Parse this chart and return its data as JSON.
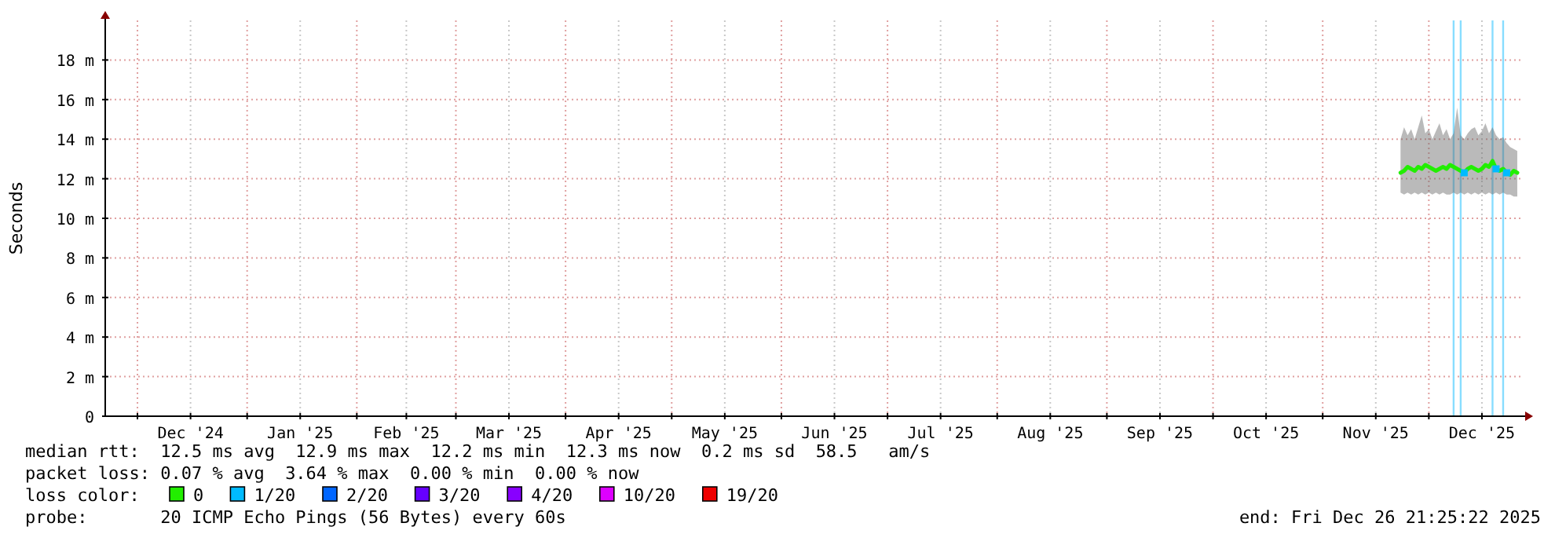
{
  "chart_data": {
    "type": "line",
    "ylabel": "Seconds",
    "legend_title": "loss color:",
    "legend": "bottom",
    "grid": true,
    "xlim": [
      "2024-11-21T21:25",
      "2025-12-26T21:25"
    ],
    "xticks": [
      {
        "value": "2024-12-01",
        "label": null
      },
      {
        "value": "2024-12-16",
        "label": "Dec '24"
      },
      {
        "value": "2025-01-01",
        "label": null
      },
      {
        "value": "2025-01-16",
        "label": "Jan '25"
      },
      {
        "value": "2025-02-01",
        "label": null
      },
      {
        "value": "2025-02-15",
        "label": "Feb '25"
      },
      {
        "value": "2025-03-01",
        "label": null
      },
      {
        "value": "2025-03-16",
        "label": "Mar '25"
      },
      {
        "value": "2025-04-01",
        "label": null
      },
      {
        "value": "2025-04-16",
        "label": "Apr '25"
      },
      {
        "value": "2025-05-01",
        "label": null
      },
      {
        "value": "2025-05-16",
        "label": "May '25"
      },
      {
        "value": "2025-06-01",
        "label": null
      },
      {
        "value": "2025-06-16",
        "label": "Jun '25"
      },
      {
        "value": "2025-07-01",
        "label": null
      },
      {
        "value": "2025-07-16",
        "label": "Jul '25"
      },
      {
        "value": "2025-08-01",
        "label": null
      },
      {
        "value": "2025-08-16",
        "label": "Aug '25"
      },
      {
        "value": "2025-09-01",
        "label": null
      },
      {
        "value": "2025-09-16",
        "label": "Sep '25"
      },
      {
        "value": "2025-10-01",
        "label": null
      },
      {
        "value": "2025-10-16",
        "label": "Oct '25"
      },
      {
        "value": "2025-11-01",
        "label": null
      },
      {
        "value": "2025-11-16",
        "label": "Nov '25"
      },
      {
        "value": "2025-12-01",
        "label": null
      },
      {
        "value": "2025-12-16",
        "label": "Dec '25"
      }
    ],
    "ylim": [
      0,
      20
    ],
    "yticks": [
      0,
      {
        "value": 2,
        "label": "2 m"
      },
      {
        "value": 4,
        "label": "4 m"
      },
      {
        "value": 6,
        "label": "6 m"
      },
      {
        "value": 8,
        "label": "8 m"
      },
      {
        "value": 10,
        "label": "10 m"
      },
      {
        "value": 12,
        "label": "12 m"
      },
      {
        "value": 14,
        "label": "14 m"
      },
      {
        "value": 16,
        "label": "16 m"
      },
      {
        "value": 18,
        "label": "18 m"
      }
    ],
    "ref_lines": [
      {
        "axis": "x",
        "value": "2025-12-08",
        "color": "#88ddff"
      },
      {
        "axis": "x",
        "value": "2025-12-10",
        "color": "#88ddff"
      },
      {
        "axis": "x",
        "value": "2025-12-19",
        "color": "#88ddff"
      },
      {
        "axis": "x",
        "value": "2025-12-22",
        "color": "#88ddff"
      }
    ],
    "series": [
      {
        "name": "0",
        "color": "#22ee00",
        "line_style": "solid",
        "x": [
          "2025-11-23",
          "2025-11-24",
          "2025-11-25",
          "2025-11-26",
          "2025-11-27",
          "2025-11-28",
          "2025-11-29",
          "2025-11-30",
          "2025-12-01",
          "2025-12-02",
          "2025-12-03",
          "2025-12-04",
          "2025-12-05",
          "2025-12-06",
          "2025-12-07",
          "2025-12-08",
          "2025-12-09",
          "2025-12-10",
          "2025-12-11",
          "2025-12-12",
          "2025-12-13",
          "2025-12-14",
          "2025-12-15",
          "2025-12-16",
          "2025-12-17",
          "2025-12-18",
          "2025-12-19",
          "2025-12-20",
          "2025-12-21",
          "2025-12-22",
          "2025-12-23",
          "2025-12-24",
          "2025-12-25",
          "2025-12-26"
        ],
        "values": [
          12.3,
          12.4,
          12.6,
          12.5,
          12.4,
          12.6,
          12.5,
          12.7,
          12.6,
          12.5,
          12.4,
          12.5,
          12.6,
          12.5,
          12.7,
          12.6,
          12.5,
          12.4,
          12.3,
          12.5,
          12.6,
          12.5,
          12.4,
          12.5,
          12.7,
          12.6,
          12.9,
          12.5,
          12.4,
          12.5,
          12.3,
          12.2,
          12.4,
          12.3
        ],
        "upper": [
          14.0,
          14.6,
          14.2,
          14.5,
          14.0,
          14.6,
          15.2,
          14.3,
          14.5,
          14.0,
          14.4,
          14.8,
          14.2,
          14.5,
          14.0,
          14.3,
          15.6,
          14.2,
          14.0,
          14.3,
          14.5,
          14.6,
          14.2,
          14.4,
          14.8,
          14.3,
          14.6,
          14.2,
          14.0,
          14.1,
          13.8,
          13.6,
          13.5,
          13.4
        ],
        "lower": [
          11.3,
          11.2,
          11.3,
          11.2,
          11.3,
          11.2,
          11.3,
          11.2,
          11.3,
          11.2,
          11.3,
          11.2,
          11.3,
          11.2,
          11.2,
          11.3,
          11.2,
          11.3,
          11.2,
          11.3,
          11.2,
          11.3,
          11.2,
          11.3,
          11.2,
          11.3,
          11.2,
          11.3,
          11.2,
          11.3,
          11.2,
          11.2,
          11.1,
          11.1
        ]
      },
      {
        "name": "1/20",
        "type": "scatter",
        "marker": "square",
        "color": "#00bbff",
        "x": [
          "2025-12-11",
          "2025-12-20",
          "2025-12-23"
        ],
        "values": [
          12.3,
          12.5,
          12.3
        ]
      },
      {
        "name": "2/20",
        "type": "scatter",
        "marker": "square",
        "color": "#0066ff"
      },
      {
        "name": "3/20",
        "type": "scatter",
        "marker": "square",
        "color": "#6600ff"
      },
      {
        "name": "4/20",
        "type": "scatter",
        "marker": "square",
        "color": "#8800ff"
      },
      {
        "name": "10/20",
        "type": "scatter",
        "marker": "square",
        "color": "#dd00ff"
      },
      {
        "name": "19/20",
        "type": "scatter",
        "marker": "square",
        "color": "#ee0000"
      }
    ],
    "annotations": [
      "median rtt:  12.5 ms avg  12.9 ms max  12.2 ms min  12.3 ms now  0.2 ms sd  58.5   am/s",
      "packet loss: 0.07 % avg  3.64 % max  0.00 % min  0.00 % now",
      "probe:       20 ICMP Echo Pings (56 Bytes) every 60s",
      "end: Fri Dec 26 21:25:22 2025"
    ]
  }
}
